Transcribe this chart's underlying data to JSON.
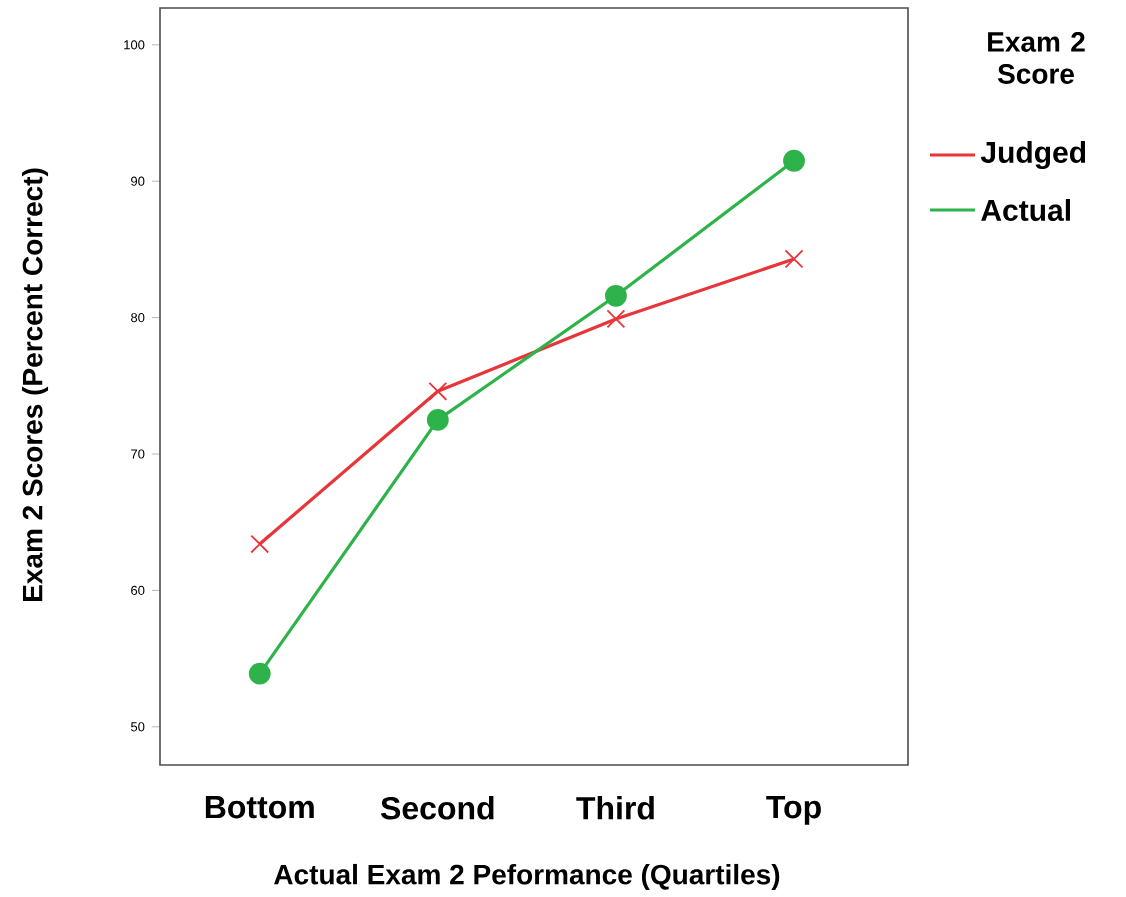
{
  "chart_data": {
    "type": "line",
    "xlabel": "Actual Exam 2 Peformance (Quartiles)",
    "ylabel": "Exam 2 Scores (Percent Correct)",
    "legend_title": "Exam 2 Score",
    "categories": [
      "Bottom",
      "Second",
      "Third",
      "Top"
    ],
    "series": [
      {
        "name": "Judged",
        "color": "#e8353a",
        "marker": "cross",
        "values": [
          63.4,
          74.6,
          79.9,
          84.3
        ]
      },
      {
        "name": "Actual",
        "color": "#2db34a",
        "marker": "circle",
        "values": [
          53.9,
          72.5,
          81.6,
          91.5
        ]
      }
    ],
    "ylim": [
      47.2,
      102.7
    ],
    "yticks": [
      50,
      60,
      70,
      80,
      90,
      100
    ],
    "grid": false,
    "legend": "right"
  }
}
